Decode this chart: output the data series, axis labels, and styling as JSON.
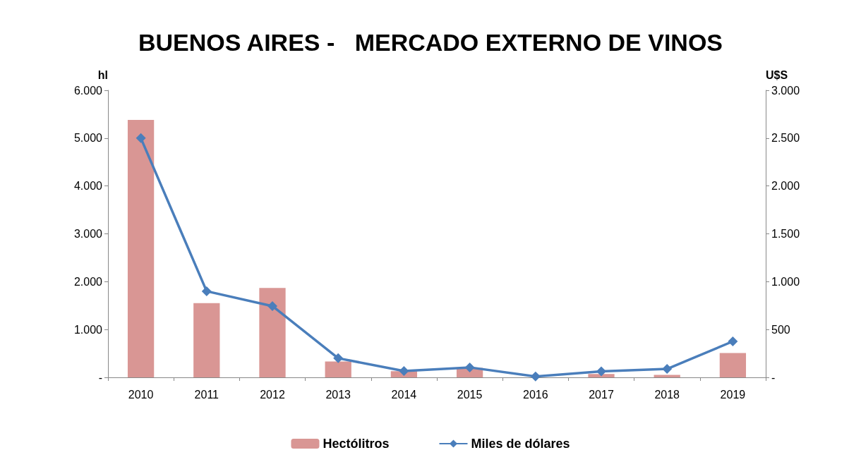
{
  "chart_data": {
    "type": "bar",
    "title": "BUENOS AIRES -   MERCADO EXTERNO DE VINOS",
    "ylabel": "hl",
    "y2label": "U$S",
    "categories": [
      "2010",
      "2011",
      "2012",
      "2013",
      "2014",
      "2015",
      "2016",
      "2017",
      "2018",
      "2019"
    ],
    "series": [
      {
        "name": "Hectólitros",
        "color": "#d99694",
        "values": [
          5380,
          1550,
          1870,
          330,
          130,
          200,
          0,
          70,
          50,
          510
        ]
      },
      {
        "name": "Miles de dólares",
        "type": "line",
        "axis": "y2",
        "color": "#4a7ebb",
        "marker": "diamond",
        "values": [
          2500,
          900,
          745,
          200,
          66,
          104,
          10,
          63,
          88,
          376
        ]
      }
    ],
    "ylim": [
      0,
      6000
    ],
    "yticks": [
      {
        "value": 0,
        "label": "-"
      },
      {
        "value": 1000,
        "label": "1.000"
      },
      {
        "value": 2000,
        "label": "2.000"
      },
      {
        "value": 3000,
        "label": "3.000"
      },
      {
        "value": 4000,
        "label": "4.000"
      },
      {
        "value": 5000,
        "label": "5.000"
      },
      {
        "value": 6000,
        "label": "6.000"
      }
    ],
    "y2lim": [
      0,
      3000
    ],
    "y2ticks": [
      {
        "value": 0,
        "label": "-"
      },
      500,
      {
        "value": 1000,
        "label": "1.000"
      },
      {
        "value": 1500,
        "label": "1.500"
      },
      {
        "value": 2000,
        "label": "2.000"
      },
      {
        "value": 2500,
        "label": "2.500"
      },
      {
        "value": 3000,
        "label": "3.000"
      }
    ],
    "grid": false,
    "legend": "bottom"
  }
}
